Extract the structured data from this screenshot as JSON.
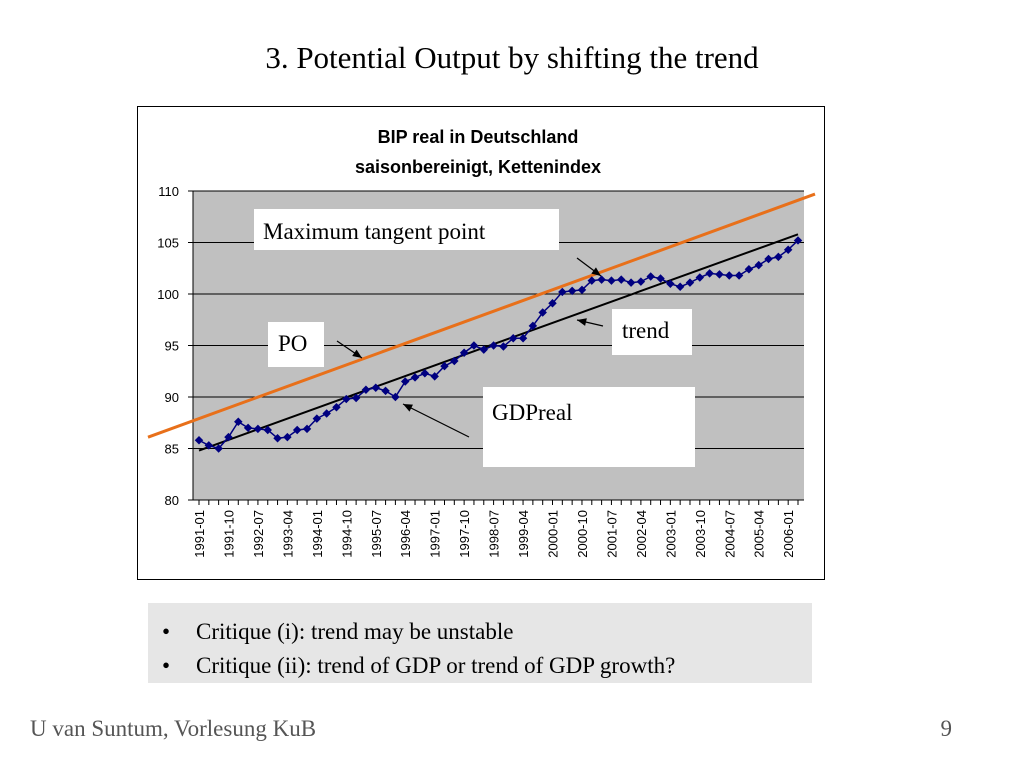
{
  "slide": {
    "title": "3. Potential Output by shifting the trend",
    "footer_left": "U van Suntum, Vorlesung KuB",
    "page_number": "9"
  },
  "critiques": [
    "Critique (i): trend may be unstable",
    "Critique (ii): trend of GDP or trend of GDP growth?"
  ],
  "annotations": {
    "max_tangent": "Maximum tangent point",
    "po": "PO",
    "trend": "trend",
    "gdpreal": "GDPreal"
  },
  "colors": {
    "plot_background": "#c0c0c0",
    "series": "#000080",
    "trend_line": "#000000",
    "po_line": "#e8701a"
  },
  "chart_data": {
    "type": "line",
    "title": "BIP real in Deutschland",
    "subtitle": "saisonbereinigt, Kettenindex",
    "xlabel": "",
    "ylabel": "",
    "ylim": [
      80,
      110
    ],
    "yticks": [
      80,
      85,
      90,
      95,
      100,
      105,
      110
    ],
    "grid": true,
    "legend": "none",
    "x": [
      "1991-01",
      "1991-04",
      "1991-07",
      "1991-10",
      "1992-01",
      "1992-04",
      "1992-07",
      "1992-10",
      "1993-01",
      "1993-04",
      "1993-07",
      "1993-10",
      "1994-01",
      "1994-04",
      "1994-07",
      "1994-10",
      "1995-01",
      "1995-04",
      "1995-07",
      "1995-10",
      "1996-01",
      "1996-04",
      "1996-07",
      "1996-10",
      "1997-01",
      "1997-04",
      "1997-07",
      "1997-10",
      "1998-01",
      "1998-04",
      "1998-07",
      "1998-10",
      "1999-01",
      "1999-04",
      "1999-07",
      "1999-10",
      "2000-01",
      "2000-04",
      "2000-07",
      "2000-10",
      "2001-01",
      "2001-04",
      "2001-07",
      "2001-10",
      "2002-01",
      "2002-04",
      "2002-07",
      "2002-10",
      "2003-01",
      "2003-04",
      "2003-07",
      "2003-10",
      "2004-01",
      "2004-04",
      "2004-07",
      "2004-10",
      "2005-01",
      "2005-04",
      "2005-07",
      "2005-10",
      "2006-01",
      "2006-04"
    ],
    "x_tick_labels": [
      "1991-01",
      "1991-10",
      "1992-07",
      "1993-04",
      "1994-01",
      "1994-10",
      "1995-07",
      "1996-04",
      "1997-01",
      "1997-10",
      "1998-07",
      "1999-04",
      "2000-01",
      "2000-10",
      "2001-07",
      "2002-04",
      "2003-01",
      "2003-10",
      "2004-07",
      "2005-04",
      "2006-01"
    ],
    "series": [
      {
        "values": [
          85.8,
          85.3,
          85.0,
          86.1,
          87.6,
          87.0,
          86.9,
          86.8,
          86.0,
          86.1,
          86.8,
          86.9,
          87.9,
          88.4,
          89.0,
          89.8,
          89.9,
          90.7,
          90.9,
          90.6,
          90.0,
          91.5,
          91.9,
          92.3,
          92.0,
          93.0,
          93.5,
          94.3,
          95.0,
          94.6,
          95.0,
          94.9,
          95.7,
          95.7,
          96.9,
          98.2,
          99.1,
          100.2,
          100.3,
          100.4,
          101.3,
          101.4,
          101.3,
          101.4,
          101.1,
          101.2,
          101.7,
          101.5,
          101.0,
          100.7,
          101.1,
          101.6,
          102.0,
          101.9,
          101.8,
          101.8,
          102.4,
          102.8,
          103.4,
          103.6,
          104.3,
          105.2
        ]
      }
    ],
    "trend_line": {
      "start": [
        "1991-01",
        84.8
      ],
      "end": [
        "2006-04",
        105.8
      ]
    },
    "po_line": {
      "start": [
        "1991-01",
        87.9
      ],
      "end": [
        "2006-04",
        109.1
      ]
    }
  }
}
